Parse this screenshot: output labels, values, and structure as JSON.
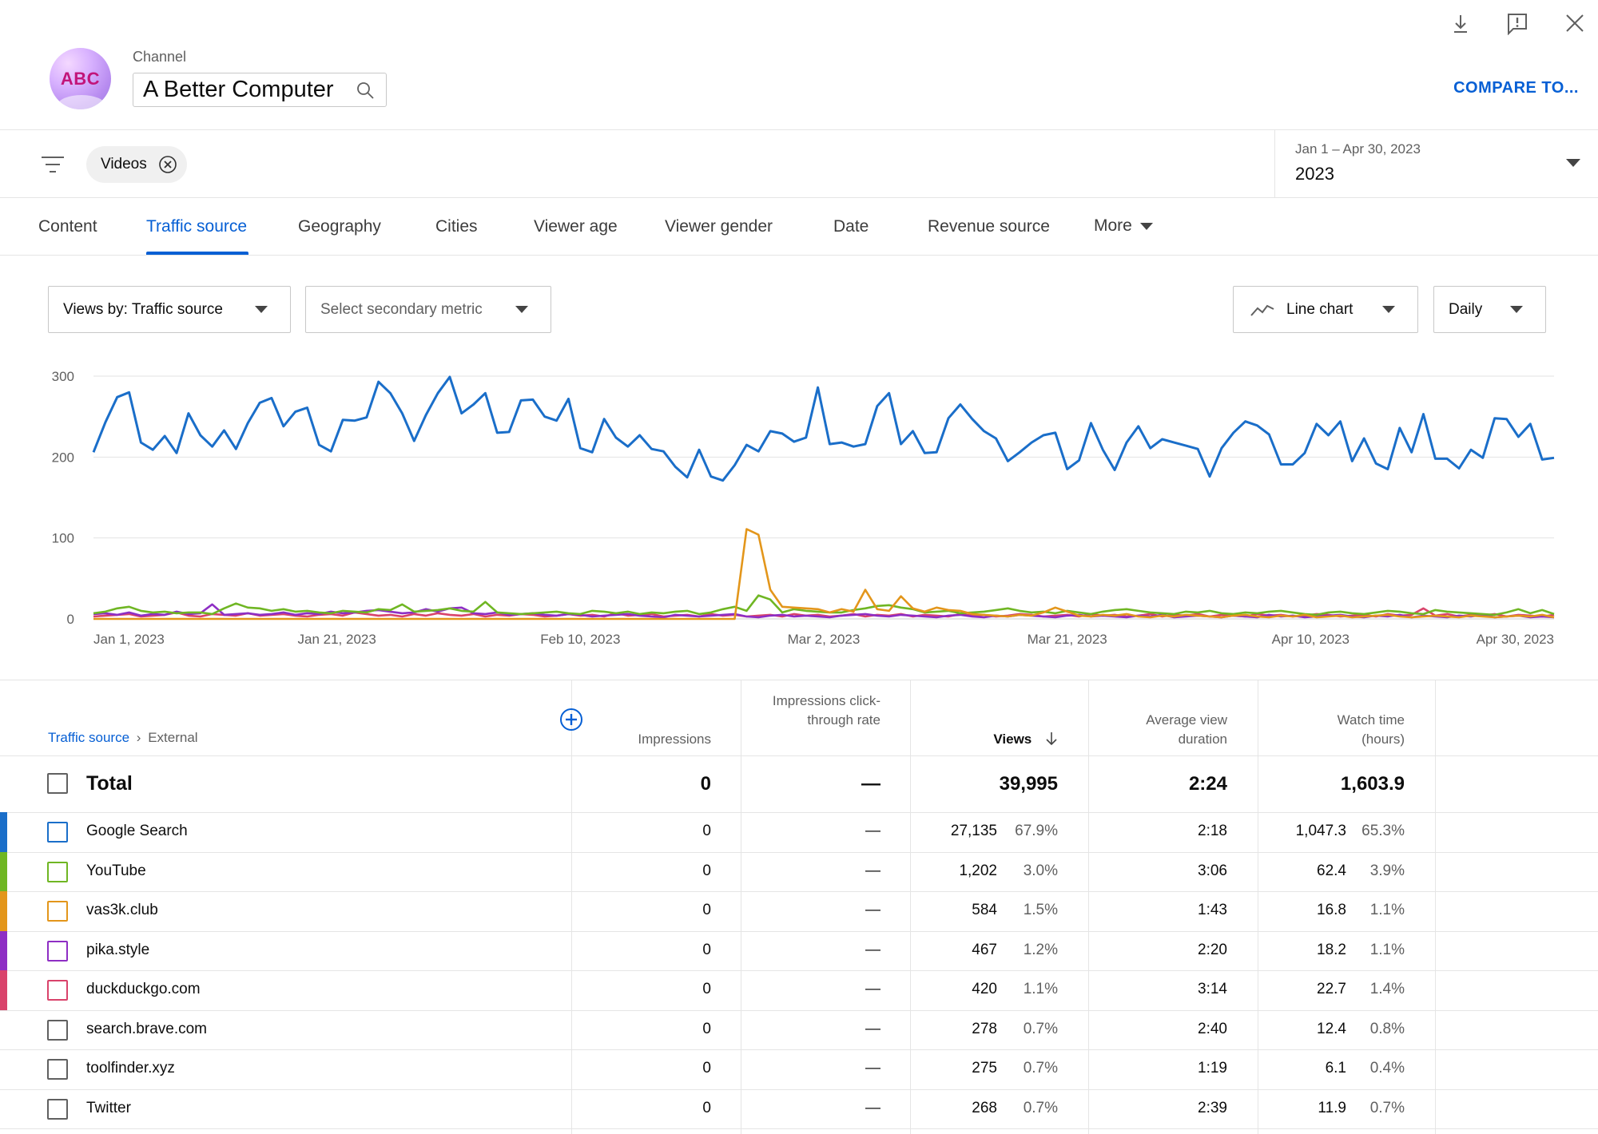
{
  "header": {
    "avatar_text": "ABC",
    "channel_label": "Channel",
    "channel_name": "A Better Computer",
    "compare_label": "COMPARE TO..."
  },
  "filters": {
    "chip_label": "Videos",
    "date_range": "Jan 1 – Apr 30, 2023",
    "date_year": "2023"
  },
  "tabs": [
    "Content",
    "Traffic source",
    "Geography",
    "Cities",
    "Viewer age",
    "Viewer gender",
    "Date",
    "Revenue source",
    "More"
  ],
  "active_tab": "Traffic source",
  "controls": {
    "metric": "Views by: Traffic source",
    "secondary": "Select secondary metric",
    "chart_type": "Line chart",
    "interval": "Daily"
  },
  "colors": {
    "accent": "#065fd4",
    "google": "#1a6ec9",
    "youtube": "#6fb623",
    "vas3k": "#e3961b",
    "pika": "#8e2ec4",
    "duckduckgo": "#d9436b"
  },
  "chart_data": {
    "type": "line",
    "x_labels": [
      "Jan 1, 2023",
      "Jan 21, 2023",
      "Feb 10, 2023",
      "Mar 2, 2023",
      "Mar 21, 2023",
      "Apr 10, 2023",
      "Apr 30, 2023"
    ],
    "y_ticks": [
      0,
      100,
      200,
      300
    ],
    "ylim": [
      0,
      300
    ],
    "x_range": [
      "2023-01-01",
      "2023-04-30"
    ],
    "grid": true,
    "series": [
      {
        "key": "google",
        "color": "#1a6ec9",
        "values": [
          206,
          243,
          274,
          280,
          218,
          209,
          226,
          205,
          254,
          227,
          213,
          233,
          210,
          242,
          267,
          273,
          238,
          256,
          261,
          215,
          207,
          246,
          245,
          249,
          293,
          279,
          254,
          220,
          252,
          279,
          299,
          254,
          265,
          279,
          230,
          231,
          270,
          271,
          250,
          245,
          272,
          211,
          206,
          247,
          224,
          213,
          227,
          210,
          207,
          188,
          175,
          209,
          176,
          171,
          190,
          215,
          207,
          232,
          229,
          219,
          224,
          286,
          216,
          218,
          213,
          216,
          263,
          279,
          216,
          232,
          205,
          206,
          248,
          265,
          247,
          232,
          223,
          195,
          206,
          218,
          227,
          230,
          185,
          196,
          242,
          209,
          184,
          218,
          238,
          211,
          222,
          218,
          214,
          210,
          176,
          211,
          230,
          244,
          239,
          228,
          191,
          191,
          205,
          241,
          227,
          244,
          195,
          223,
          192,
          185,
          236,
          206,
          253,
          198,
          198,
          186,
          209,
          199,
          248,
          247,
          225,
          241,
          197,
          199
        ]
      },
      {
        "key": "youtube",
        "color": "#6fb623",
        "values": [
          7,
          9,
          13,
          15,
          10,
          8,
          9,
          7,
          8,
          8,
          6,
          13,
          19,
          14,
          13,
          10,
          12,
          9,
          10,
          8,
          7,
          10,
          9,
          8,
          12,
          11,
          18,
          9,
          10,
          11,
          13,
          10,
          9,
          21,
          8,
          7,
          6,
          7,
          8,
          9,
          7,
          6,
          10,
          9,
          7,
          9,
          6,
          8,
          7,
          9,
          10,
          6,
          8,
          12,
          15,
          10,
          29,
          24,
          8,
          12,
          10,
          9,
          8,
          8,
          11,
          13,
          16,
          17,
          14,
          12,
          8,
          9,
          10,
          7,
          8,
          9,
          11,
          13,
          10,
          8,
          9,
          7,
          10,
          8,
          6,
          9,
          11,
          12,
          10,
          8,
          7,
          6,
          9,
          8,
          10,
          7,
          6,
          8,
          7,
          9,
          10,
          8,
          6,
          5,
          8,
          9,
          7,
          6,
          8,
          10,
          9,
          7,
          6,
          11,
          9,
          8,
          7,
          6,
          5,
          8,
          12,
          7,
          11,
          6
        ]
      },
      {
        "key": "vas3k",
        "color": "#e3961b",
        "values": [
          0,
          0,
          0,
          0,
          0,
          0,
          0,
          0,
          0,
          0,
          0,
          0,
          0,
          0,
          0,
          0,
          0,
          0,
          0,
          0,
          0,
          0,
          0,
          0,
          0,
          0,
          0,
          0,
          0,
          0,
          0,
          0,
          0,
          0,
          0,
          0,
          0,
          0,
          0,
          0,
          0,
          0,
          0,
          0,
          0,
          0,
          0,
          0,
          0,
          0,
          0,
          0,
          0,
          0,
          0,
          111,
          104,
          36,
          15,
          14,
          13,
          12,
          8,
          12,
          9,
          36,
          12,
          10,
          28,
          13,
          9,
          14,
          11,
          10,
          6,
          5,
          4,
          3,
          5,
          4,
          8,
          14,
          9,
          4,
          3,
          5,
          4,
          6,
          3,
          2,
          4,
          3,
          5,
          4,
          3,
          2,
          4,
          5,
          3,
          2,
          4,
          3,
          5,
          2,
          3,
          4,
          2,
          3,
          4,
          5,
          3,
          2,
          3,
          4,
          3,
          2,
          4,
          3,
          2,
          3,
          4,
          3,
          5,
          2
        ]
      },
      {
        "key": "pika",
        "color": "#8e2ec4",
        "values": [
          6,
          7,
          5,
          8,
          4,
          6,
          5,
          9,
          6,
          7,
          18,
          5,
          6,
          7,
          5,
          6,
          8,
          5,
          7,
          6,
          9,
          7,
          8,
          10,
          11,
          9,
          7,
          8,
          12,
          9,
          13,
          14,
          7,
          6,
          8,
          5,
          6,
          7,
          5,
          4,
          6,
          5,
          3,
          4,
          5,
          6,
          4,
          3,
          2,
          5,
          4,
          3,
          4,
          5,
          6,
          3,
          2,
          4,
          5,
          3,
          4,
          3,
          2,
          4,
          5,
          6,
          4,
          3,
          5,
          4,
          3,
          2,
          4,
          5,
          3,
          2,
          4,
          3,
          5,
          4,
          3,
          2,
          4,
          5,
          3,
          4,
          3,
          2,
          4,
          3,
          5,
          2,
          3,
          4,
          3,
          2,
          4,
          3,
          2,
          5,
          3,
          4,
          2,
          3,
          4,
          5,
          3,
          2,
          4,
          3,
          5,
          2,
          4,
          3,
          2,
          4,
          3,
          5,
          2,
          3,
          4,
          2,
          3,
          2
        ]
      },
      {
        "key": "duckduckgo",
        "color": "#d9436b",
        "values": [
          3,
          4,
          5,
          6,
          3,
          4,
          5,
          8,
          4,
          3,
          6,
          5,
          4,
          7,
          4,
          5,
          6,
          4,
          3,
          5,
          6,
          4,
          8,
          6,
          4,
          5,
          3,
          6,
          4,
          7,
          5,
          4,
          6,
          3,
          5,
          4,
          6,
          5,
          3,
          4,
          6,
          4,
          5,
          3,
          7,
          4,
          5,
          6,
          3,
          4,
          5,
          3,
          6,
          4,
          5,
          3,
          4,
          5,
          3,
          6,
          4,
          5,
          3,
          4,
          6,
          3,
          5,
          4,
          6,
          3,
          5,
          4,
          3,
          6,
          4,
          5,
          3,
          4,
          6,
          5,
          3,
          4,
          5,
          3,
          6,
          4,
          5,
          3,
          4,
          6,
          3,
          5,
          4,
          6,
          3,
          5,
          4,
          3,
          6,
          4,
          5,
          3,
          4,
          6,
          5,
          3,
          4,
          5,
          3,
          6,
          4,
          5,
          13,
          4,
          6,
          3,
          5,
          4,
          6,
          3,
          5,
          4,
          3,
          5
        ]
      }
    ]
  },
  "table": {
    "breadcrumb_link": "Traffic source",
    "breadcrumb_current": "External",
    "columns": {
      "impressions": "Impressions",
      "ctr": "Impressions click-through rate",
      "views": "Views",
      "avg_duration": "Average view duration",
      "watch_time": "Watch time (hours)"
    },
    "total": {
      "label": "Total",
      "impressions": "0",
      "ctr": "—",
      "views": "39,995",
      "avg_duration": "2:24",
      "watch_time": "1,603.9"
    },
    "rows": [
      {
        "label": "Google Search",
        "color": "#1a6ec9",
        "impressions": "0",
        "ctr": "—",
        "views": "27,135",
        "views_pct": "67.9%",
        "avg_duration": "2:18",
        "watch_time": "1,047.3",
        "watch_pct": "65.3%"
      },
      {
        "label": "YouTube",
        "color": "#6fb623",
        "impressions": "0",
        "ctr": "—",
        "views": "1,202",
        "views_pct": "3.0%",
        "avg_duration": "3:06",
        "watch_time": "62.4",
        "watch_pct": "3.9%"
      },
      {
        "label": "vas3k.club",
        "color": "#e3961b",
        "impressions": "0",
        "ctr": "—",
        "views": "584",
        "views_pct": "1.5%",
        "avg_duration": "1:43",
        "watch_time": "16.8",
        "watch_pct": "1.1%"
      },
      {
        "label": "pika.style",
        "color": "#8e2ec4",
        "impressions": "0",
        "ctr": "—",
        "views": "467",
        "views_pct": "1.2%",
        "avg_duration": "2:20",
        "watch_time": "18.2",
        "watch_pct": "1.1%"
      },
      {
        "label": "duckduckgo.com",
        "color": "#d9436b",
        "impressions": "0",
        "ctr": "—",
        "views": "420",
        "views_pct": "1.1%",
        "avg_duration": "3:14",
        "watch_time": "22.7",
        "watch_pct": "1.4%"
      },
      {
        "label": "search.brave.com",
        "color": "",
        "impressions": "0",
        "ctr": "—",
        "views": "278",
        "views_pct": "0.7%",
        "avg_duration": "2:40",
        "watch_time": "12.4",
        "watch_pct": "0.8%"
      },
      {
        "label": "toolfinder.xyz",
        "color": "",
        "impressions": "0",
        "ctr": "—",
        "views": "275",
        "views_pct": "0.7%",
        "avg_duration": "1:19",
        "watch_time": "6.1",
        "watch_pct": "0.4%"
      },
      {
        "label": "Twitter",
        "color": "",
        "impressions": "0",
        "ctr": "—",
        "views": "268",
        "views_pct": "0.7%",
        "avg_duration": "2:39",
        "watch_time": "11.9",
        "watch_pct": "0.7%"
      }
    ]
  }
}
